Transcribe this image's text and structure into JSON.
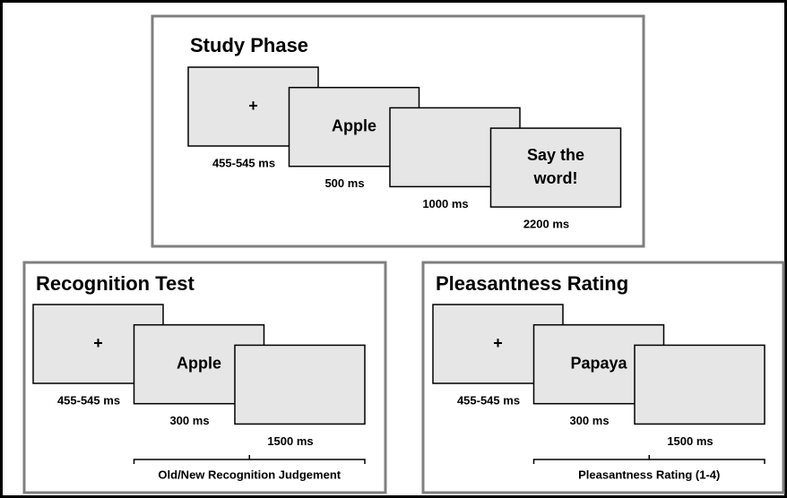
{
  "panels": [
    {
      "title": "Study Phase",
      "screens": [
        {
          "text": [
            "+"
          ],
          "duration": "455-545 ms"
        },
        {
          "text": [
            "Apple"
          ],
          "duration": "500 ms"
        },
        {
          "duration": "1000 ms"
        },
        {
          "text": [
            "Say the",
            "word!"
          ],
          "duration": "2200 ms"
        }
      ]
    },
    {
      "title": "Recognition Test",
      "screens": [
        {
          "text": [
            "+"
          ],
          "duration": "455-545 ms"
        },
        {
          "text": [
            "Apple"
          ],
          "duration": "300 ms"
        },
        {
          "duration": "1500 ms"
        }
      ],
      "bracket": "Old/New Recognition Judgement"
    },
    {
      "title": "Pleasantness Rating",
      "screens": [
        {
          "text": [
            "+"
          ],
          "duration": "455-545 ms"
        },
        {
          "text": [
            "Papaya"
          ],
          "duration": "300 ms"
        },
        {
          "duration": "1500 ms"
        }
      ],
      "bracket": "Pleasantness Rating (1-4)"
    }
  ]
}
